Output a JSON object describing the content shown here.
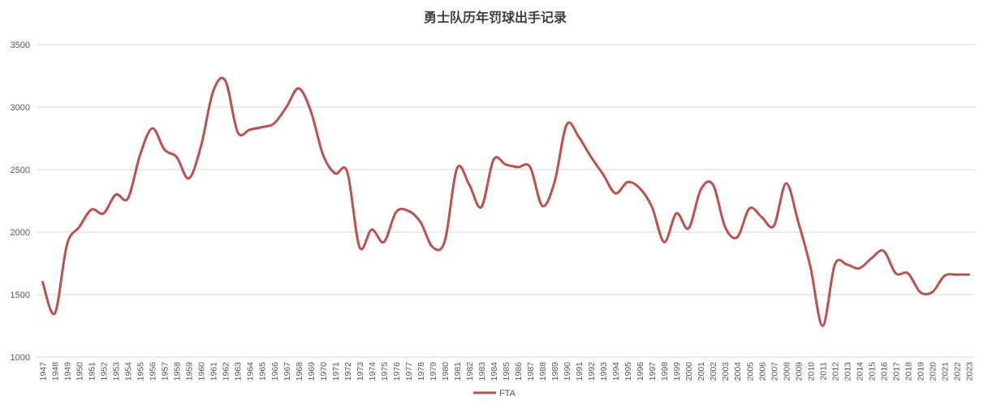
{
  "chart_data": {
    "type": "line",
    "title": "勇士队历年罚球出手记录",
    "xlabel": "",
    "ylabel": "",
    "ylim": [
      1000,
      3500
    ],
    "yticks": [
      "1000",
      "1500",
      "2000",
      "2500",
      "3000",
      "3500"
    ],
    "grid": true,
    "legend_position": "bottom",
    "series_color": "#c0504d",
    "x": [
      "1947",
      "1948",
      "1949",
      "1950",
      "1951",
      "1952",
      "1953",
      "1954",
      "1955",
      "1956",
      "1957",
      "1958",
      "1959",
      "1960",
      "1961",
      "1962",
      "1963",
      "1964",
      "1965",
      "1966",
      "1967",
      "1968",
      "1969",
      "1970",
      "1971",
      "1972",
      "1973",
      "1974",
      "1975",
      "1976",
      "1977",
      "1978",
      "1979",
      "1980",
      "1981",
      "1982",
      "1983",
      "1984",
      "1985",
      "1986",
      "1987",
      "1988",
      "1989",
      "1990",
      "1991",
      "1992",
      "1993",
      "1994",
      "1995",
      "1996",
      "1997",
      "1998",
      "1999",
      "2000",
      "2001",
      "2002",
      "2003",
      "2004",
      "2005",
      "2006",
      "2007",
      "2008",
      "2009",
      "2010",
      "2011",
      "2012",
      "2013",
      "2014",
      "2015",
      "2016",
      "2017",
      "2018",
      "2019",
      "2020",
      "2021",
      "2022",
      "2023"
    ],
    "series": [
      {
        "name": "FTA",
        "values": [
          1600,
          1350,
          1900,
          2040,
          2180,
          2150,
          2300,
          2270,
          2620,
          2830,
          2660,
          2600,
          2430,
          2690,
          3130,
          3210,
          2800,
          2820,
          2840,
          2870,
          3000,
          3150,
          2970,
          2620,
          2470,
          2480,
          1880,
          2020,
          1920,
          2160,
          2170,
          2080,
          1880,
          1930,
          2510,
          2380,
          2200,
          2580,
          2540,
          2520,
          2520,
          2210,
          2400,
          2860,
          2760,
          2600,
          2460,
          2310,
          2400,
          2350,
          2200,
          1920,
          2150,
          2030,
          2340,
          2380,
          2040,
          1960,
          2190,
          2120,
          2050,
          2390,
          2080,
          1720,
          1250,
          1740,
          1740,
          1710,
          1790,
          1850,
          1670,
          1670,
          1520,
          1520,
          1650,
          1660,
          1660
        ]
      }
    ]
  }
}
